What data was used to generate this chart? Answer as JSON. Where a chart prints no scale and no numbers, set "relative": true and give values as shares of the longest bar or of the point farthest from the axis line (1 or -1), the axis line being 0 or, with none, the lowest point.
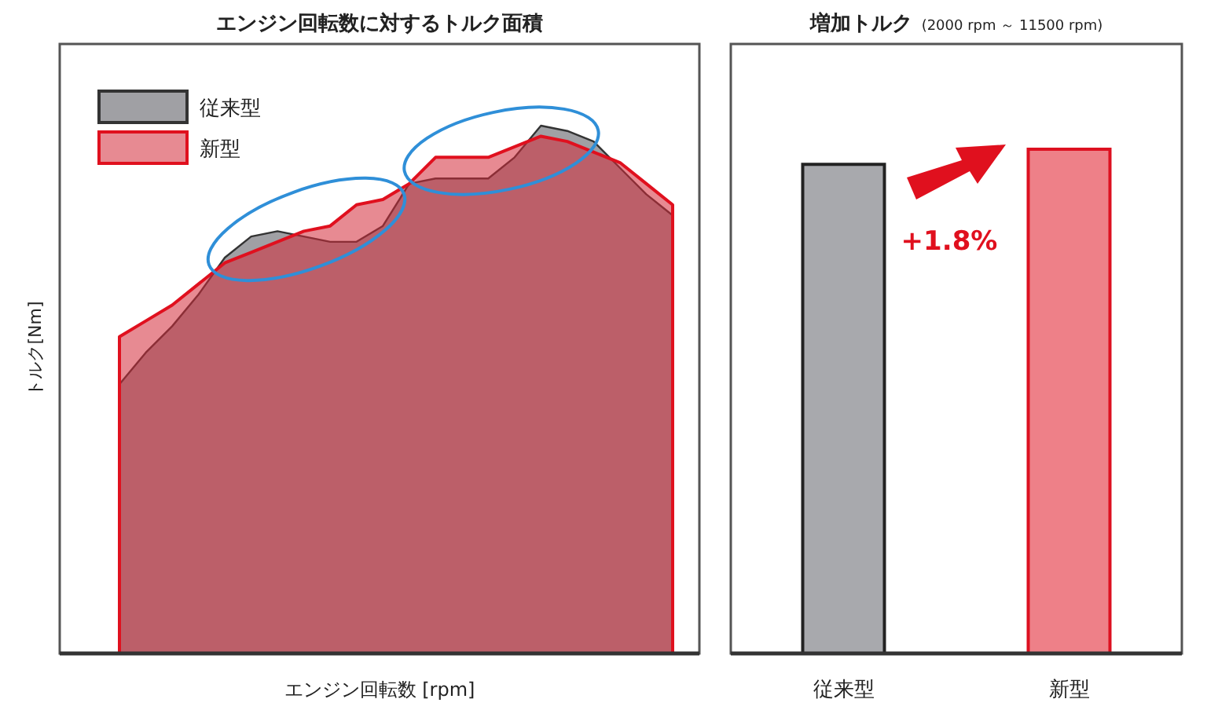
{
  "chart_data": [
    {
      "type": "area",
      "title": "エンジン回転数に対するトルク面積",
      "xlabel": "エンジン回転数 [rpm]",
      "ylabel": "トルク[Nm]",
      "relative": true,
      "legend": "top left",
      "categories": [
        null,
        null,
        null,
        null,
        null,
        null,
        null,
        null,
        null,
        null,
        null,
        null,
        null,
        null,
        null,
        null,
        null,
        null,
        null,
        null,
        null,
        null
      ],
      "series": [
        {
          "name": "従来型",
          "color": "#a0a0a4",
          "values": [
            0.51,
            0.57,
            0.62,
            0.68,
            0.75,
            0.79,
            0.8,
            0.79,
            0.78,
            0.78,
            0.81,
            0.89,
            0.9,
            0.9,
            0.9,
            0.94,
            1.0,
            0.99,
            0.97,
            0.92,
            0.87,
            0.83
          ]
        },
        {
          "name": "新型",
          "color": "#d42a38",
          "values": [
            0.6,
            0.63,
            0.66,
            0.7,
            0.74,
            0.76,
            0.78,
            0.8,
            0.81,
            0.85,
            0.86,
            0.89,
            0.94,
            0.94,
            0.94,
            0.96,
            0.98,
            0.97,
            0.95,
            0.93,
            0.89,
            0.85
          ]
        }
      ]
    },
    {
      "type": "bar",
      "title": "増加トルク",
      "subtitle": "(2000 rpm ～ 11500 rpm)",
      "relative": true,
      "categories": [
        "従来型",
        "新型"
      ],
      "values": [
        0.97,
        1.0
      ],
      "colors": [
        "#a8a9ad",
        "#ee8088"
      ],
      "annotations": [
        "+1.8%"
      ]
    }
  ]
}
